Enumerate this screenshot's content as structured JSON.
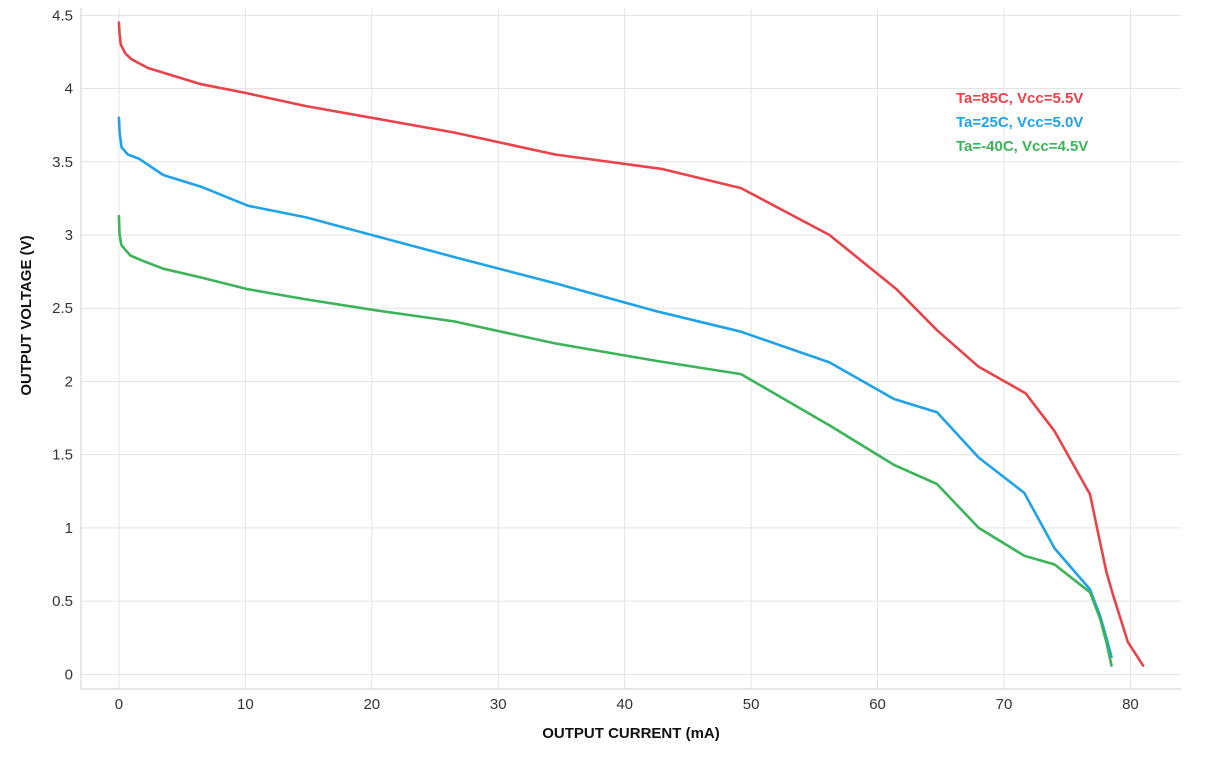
{
  "chart_data": {
    "type": "line",
    "title": "",
    "xlabel": "OUTPUT CURRENT (mA)",
    "ylabel": "OUTPUT VOLTAGE (V)",
    "xlim": [
      -3,
      84
    ],
    "ylim": [
      -0.1,
      4.55
    ],
    "xticks": [
      0,
      10,
      20,
      30,
      40,
      50,
      60,
      70,
      80
    ],
    "yticks": [
      0,
      0.5,
      1,
      1.5,
      2,
      2.5,
      3,
      3.5,
      4,
      4.5
    ],
    "xtick_labels": [
      "0",
      "10",
      "20",
      "30",
      "40",
      "50",
      "60",
      "70",
      "80"
    ],
    "ytick_labels": [
      "0",
      "0.5",
      "1",
      "1.5",
      "2",
      "2.5",
      "3",
      "3.5",
      "4",
      "4.5"
    ],
    "grid": true,
    "legend_position": "top-right",
    "series": [
      {
        "name": "Ta=85C, Vcc=5.5V",
        "color": "#e8434a",
        "points": [
          [
            0,
            4.45
          ],
          [
            0.05,
            4.37
          ],
          [
            0.15,
            4.3
          ],
          [
            0.5,
            4.24
          ],
          [
            1,
            4.2
          ],
          [
            2.3,
            4.14
          ],
          [
            6.5,
            4.03
          ],
          [
            10,
            3.97
          ],
          [
            14.8,
            3.88
          ],
          [
            20,
            3.8
          ],
          [
            26.5,
            3.7
          ],
          [
            34.5,
            3.55
          ],
          [
            43,
            3.45
          ],
          [
            49.2,
            3.32
          ],
          [
            56.2,
            3.0
          ],
          [
            61.5,
            2.63
          ],
          [
            64.7,
            2.35
          ],
          [
            68,
            2.1
          ],
          [
            71.7,
            1.92
          ],
          [
            74,
            1.66
          ],
          [
            76.8,
            1.23
          ],
          [
            77.6,
            0.9
          ],
          [
            78.1,
            0.7
          ],
          [
            78.6,
            0.55
          ],
          [
            79.8,
            0.22
          ],
          [
            81,
            0.06
          ]
        ]
      },
      {
        "name": "Ta=25C, Vcc=5.0V",
        "color": "#1fa3e6",
        "points": [
          [
            0,
            3.8
          ],
          [
            0.05,
            3.7
          ],
          [
            0.2,
            3.6
          ],
          [
            0.7,
            3.55
          ],
          [
            1.6,
            3.52
          ],
          [
            3.5,
            3.41
          ],
          [
            6.5,
            3.33
          ],
          [
            10.2,
            3.2
          ],
          [
            14.8,
            3.12
          ],
          [
            20,
            3.0
          ],
          [
            26.5,
            2.85
          ],
          [
            34.5,
            2.67
          ],
          [
            42.5,
            2.48
          ],
          [
            49.2,
            2.34
          ],
          [
            56.2,
            2.13
          ],
          [
            61.3,
            1.88
          ],
          [
            64.7,
            1.79
          ],
          [
            68,
            1.48
          ],
          [
            71.6,
            1.24
          ],
          [
            74,
            0.86
          ],
          [
            76.8,
            0.58
          ],
          [
            77.6,
            0.4
          ],
          [
            78.1,
            0.25
          ],
          [
            78.5,
            0.12
          ]
        ]
      },
      {
        "name": "Ta=-40C, Vcc=4.5V",
        "color": "#3cb35a",
        "points": [
          [
            0,
            3.13
          ],
          [
            0.05,
            3.0
          ],
          [
            0.2,
            2.93
          ],
          [
            0.9,
            2.86
          ],
          [
            2,
            2.82
          ],
          [
            3.5,
            2.77
          ],
          [
            6.5,
            2.71
          ],
          [
            10.2,
            2.63
          ],
          [
            14.8,
            2.56
          ],
          [
            20,
            2.49
          ],
          [
            26.5,
            2.41
          ],
          [
            34.5,
            2.26
          ],
          [
            42.5,
            2.14
          ],
          [
            49.2,
            2.05
          ],
          [
            56.2,
            1.7
          ],
          [
            61.3,
            1.43
          ],
          [
            64.7,
            1.3
          ],
          [
            68,
            1.0
          ],
          [
            71.6,
            0.81
          ],
          [
            74,
            0.75
          ],
          [
            76.8,
            0.56
          ],
          [
            77.6,
            0.38
          ],
          [
            78.1,
            0.22
          ],
          [
            78.5,
            0.06
          ]
        ]
      }
    ]
  }
}
